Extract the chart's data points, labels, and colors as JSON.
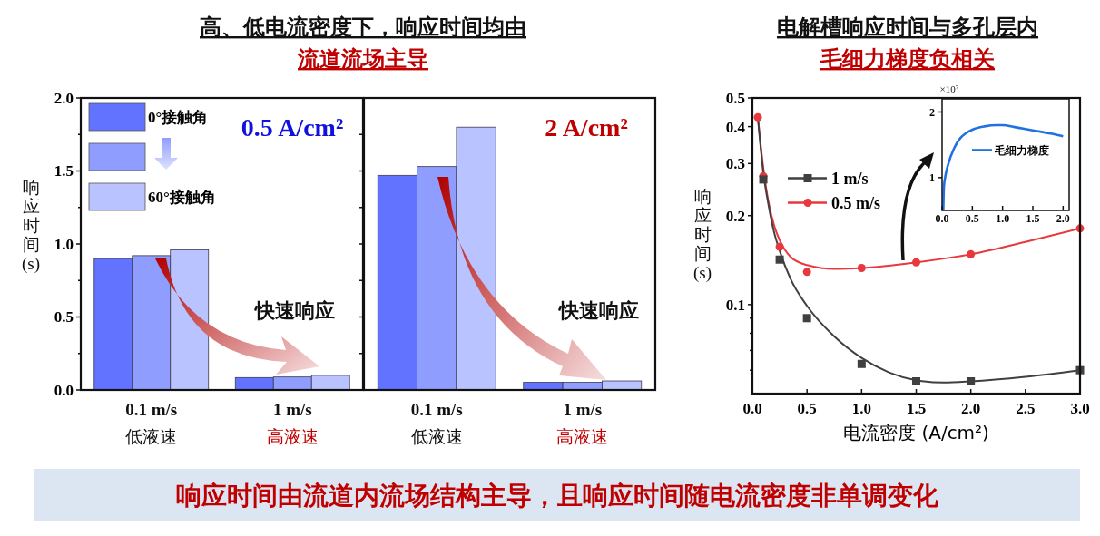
{
  "chart_data": [
    {
      "type": "bar",
      "title": "高、低电流密度下，响应时间均由",
      "subtitle": "流道流场主导",
      "categories": [
        "0.1 m/s\n低液速",
        "1 m/s\n高液速"
      ],
      "ylabel": "响应时间(s)",
      "ylim": [
        0,
        2
      ],
      "yticks": [
        {
          "value": 0,
          "label": "0.0"
        },
        {
          "value": 0.25,
          "label": null
        },
        0.5,
        {
          "value": 0.75,
          "label": null
        },
        {
          "value": 1,
          "label": "1.0"
        },
        {
          "value": 1.25,
          "label": null
        },
        1.5,
        {
          "value": 1.75,
          "label": null
        },
        {
          "value": 2,
          "label": "2.0"
        }
      ],
      "legend": "top left",
      "grid": false,
      "series": [
        {
          "name": "0°接触角",
          "color": "#6173ff",
          "values": [
            0.9,
            0.085
          ]
        },
        {
          "color": "#8f9dff",
          "values": [
            0.92,
            0.089
          ]
        },
        {
          "name": "60°接触角",
          "color": "#b9c3ff",
          "values": [
            0.96,
            0.1
          ]
        }
      ],
      "annotations": [
        "0.5 A/cm²",
        "快速响应",
        "响应时间由流道内流场结构主导，且响应时间随电流密度非单调变化"
      ]
    },
    {
      "type": "bar",
      "categories": [
        "0.1 m/s\n低液速",
        "1 m/s\n高液速"
      ],
      "ylim": [
        0,
        2
      ],
      "yticks": [
        0,
        0.25,
        0.5,
        0.75,
        1,
        1.25,
        1.5,
        1.75,
        2
      ],
      "tick_labels": "x",
      "grid": false,
      "series": [
        {
          "color": "#6173ff",
          "values": [
            1.47,
            0.053
          ]
        },
        {
          "color": "#8f9dff",
          "values": [
            1.53,
            0.053
          ]
        },
        {
          "color": "#b9c3ff",
          "values": [
            1.8,
            0.062
          ]
        }
      ],
      "annotations": [
        "2 A/cm²",
        "快速响应"
      ]
    },
    {
      "type": "line",
      "title": "电解槽响应时间与多孔层内",
      "subtitle": "毛细力梯度负相关",
      "xlabel": "电流密度 (A/cm²)",
      "ylabel": "响应时间(s)",
      "log": "y",
      "xlim": [
        0,
        3
      ],
      "xticks": [
        {
          "value": 0,
          "label": "0.0"
        },
        0.5,
        {
          "value": 1,
          "label": "1.0"
        },
        1.5,
        {
          "value": 2,
          "label": "2.0"
        },
        2.5,
        {
          "value": 3,
          "label": "3.0"
        }
      ],
      "ylim": [
        0.05,
        0.5
      ],
      "yticks": [
        {
          "value": 0.06,
          "label": null
        },
        {
          "value": 0.07,
          "label": null
        },
        {
          "value": 0.08,
          "label": null
        },
        {
          "value": 0.09,
          "label": null
        },
        0.1,
        0.2,
        0.3,
        0.4,
        0.5
      ],
      "legend": "top left",
      "grid": false,
      "series": [
        {
          "name": "1 m/s",
          "type": "scatter",
          "marker": "square",
          "color": "#404040",
          "x": [
            0.1,
            0.25,
            0.5,
            1,
            1.5,
            2,
            3
          ],
          "values": [
            0.265,
            0.142,
            0.09,
            0.063,
            0.055,
            0.055,
            0.06
          ]
        },
        {
          "name": "0.5 m/s",
          "type": "scatter",
          "marker": "circle",
          "color": "#e8383d",
          "x": [
            0.05,
            0.1,
            0.25,
            0.5,
            1,
            1.5,
            2,
            3
          ],
          "values": [
            0.43,
            0.272,
            0.157,
            0.129,
            0.133,
            0.139,
            0.148,
            0.181
          ]
        },
        {
          "type": "line",
          "color": "#404040",
          "x": [
            0.05,
            0.1,
            0.15,
            0.2,
            0.25,
            0.35,
            0.5,
            0.75,
            1,
            1.25,
            1.5,
            1.75,
            2,
            2.5,
            3
          ],
          "values": [
            0.43,
            0.28,
            0.215,
            0.175,
            0.152,
            0.122,
            0.099,
            0.078,
            0.066,
            0.059,
            0.0555,
            0.0545,
            0.055,
            0.057,
            0.06
          ]
        },
        {
          "type": "line",
          "color": "#e8383d",
          "x": [
            0.05,
            0.1,
            0.15,
            0.2,
            0.25,
            0.35,
            0.5,
            0.75,
            1,
            1.5,
            2,
            2.5,
            3
          ],
          "values": [
            0.43,
            0.29,
            0.22,
            0.185,
            0.165,
            0.145,
            0.136,
            0.132,
            0.133,
            0.139,
            0.148,
            0.163,
            0.181
          ]
        }
      ]
    },
    {
      "type": "line",
      "xlim": [
        0,
        2.1
      ],
      "xticks": [
        {
          "value": 0,
          "label": "0.0"
        },
        0.5,
        {
          "value": 1,
          "label": "1.0"
        },
        1.5,
        {
          "value": 2,
          "label": "2.0"
        }
      ],
      "ylim": [
        0.5,
        2.2
      ],
      "yticks": [
        1,
        2
      ],
      "legend": "right",
      "grid": false,
      "annotations": [
        "×10$^{7}$"
      ],
      "series": [
        {
          "name": "毛细力梯度",
          "color": "#1f72e0",
          "x": [
            0.02,
            0.03,
            0.05,
            0.1,
            0.2,
            0.3,
            0.4,
            0.5,
            0.7,
            0.9,
            1,
            1.2,
            1.5,
            1.8,
            2
          ],
          "values": [
            0.5,
            0.85,
            1.0,
            1.2,
            1.45,
            1.6,
            1.68,
            1.73,
            1.78,
            1.8,
            1.8,
            1.77,
            1.72,
            1.67,
            1.63
          ]
        }
      ]
    }
  ]
}
